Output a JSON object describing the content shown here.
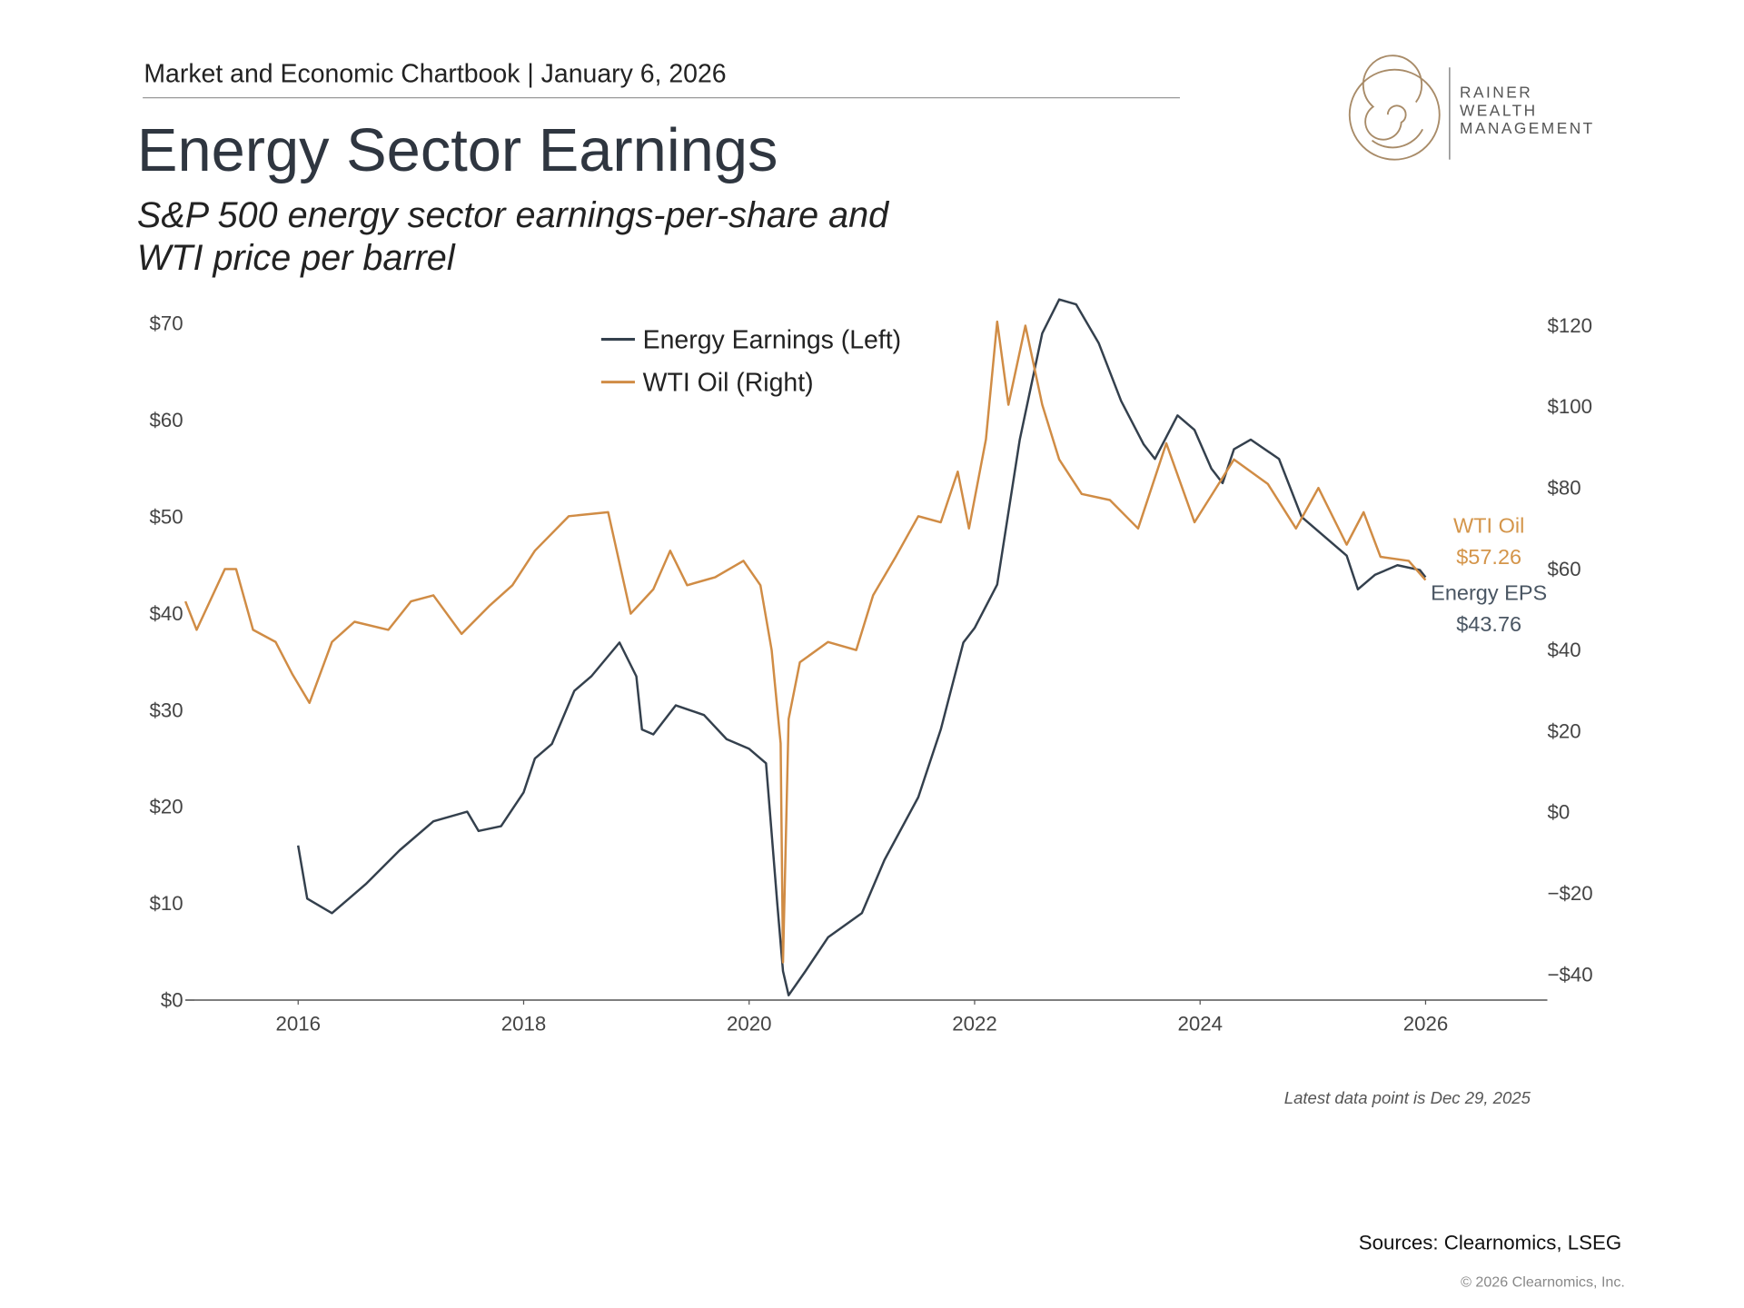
{
  "header": "Market and Economic Chartbook | January 6, 2026",
  "logo": [
    "RAINER",
    "WEALTH",
    "MANAGEMENT"
  ],
  "note": "Latest data point is Dec 29, 2025",
  "sources": "Sources: Clearnomics, LSEG",
  "copyright": "© 2026 Clearnomics, Inc.",
  "chart_data": {
    "type": "line",
    "title": "Energy Sector Earnings",
    "subtitle": [
      "S&P 500 energy sector earnings-per-share and",
      "WTI price per barrel"
    ],
    "xlim": [
      2015,
      2027.08
    ],
    "xticks": [
      2016,
      2018,
      2020,
      2022,
      2024,
      2026
    ],
    "ylim": [
      0,
      70
    ],
    "yticks": [
      {
        "value": 0,
        "label": "$0"
      },
      {
        "value": 10,
        "label": "$10"
      },
      {
        "value": 20,
        "label": "$20"
      },
      {
        "value": 30,
        "label": "$30"
      },
      {
        "value": 40,
        "label": "$40"
      },
      {
        "value": 50,
        "label": "$50"
      },
      {
        "value": 60,
        "label": "$60"
      },
      {
        "value": 70,
        "label": "$70"
      }
    ],
    "y2lim": [
      -46.3,
      120.5
    ],
    "y2ticks": [
      {
        "value": -40,
        "label": "−$40"
      },
      {
        "value": -20,
        "label": "−$20"
      },
      {
        "value": 0,
        "label": "$0"
      },
      {
        "value": 20,
        "label": "$20"
      },
      {
        "value": 40,
        "label": "$40"
      },
      {
        "value": 60,
        "label": "$60"
      },
      {
        "value": 80,
        "label": "$80"
      },
      {
        "value": 100,
        "label": "$100"
      },
      {
        "value": 120,
        "label": "$120"
      }
    ],
    "grid": false,
    "legend": "top",
    "series": [
      {
        "name": "Energy Earnings (Left)",
        "color": "#34404d",
        "axis": "y",
        "x": [
          2016.0,
          2016.08,
          2016.3,
          2016.6,
          2016.9,
          2017.2,
          2017.5,
          2017.6,
          2017.8,
          2018.0,
          2018.1,
          2018.25,
          2018.45,
          2018.6,
          2018.85,
          2019.0,
          2019.05,
          2019.15,
          2019.35,
          2019.6,
          2019.8,
          2020.0,
          2020.15,
          2020.25,
          2020.3,
          2020.35,
          2020.5,
          2020.7,
          2021.0,
          2021.2,
          2021.5,
          2021.7,
          2021.9,
          2022.0,
          2022.2,
          2022.4,
          2022.6,
          2022.75,
          2022.9,
          2023.1,
          2023.3,
          2023.5,
          2023.6,
          2023.8,
          2023.95,
          2024.1,
          2024.2,
          2024.3,
          2024.45,
          2024.7,
          2024.9,
          2025.1,
          2025.3,
          2025.4,
          2025.55,
          2025.75,
          2025.95,
          2026.0
        ],
        "values": [
          16,
          10.5,
          9,
          12,
          15.5,
          18.5,
          19.5,
          17.5,
          18,
          21.5,
          25,
          26.5,
          32,
          33.5,
          37,
          33.5,
          28,
          27.5,
          30.5,
          29.5,
          27,
          26,
          24.5,
          10,
          3,
          0.5,
          3,
          6.5,
          9,
          14.5,
          21,
          28,
          37,
          38.5,
          43,
          58,
          69,
          72.5,
          72,
          68,
          62,
          57.5,
          56,
          60.5,
          59,
          55,
          53.5,
          57,
          58,
          56,
          50,
          48,
          46,
          42.5,
          44,
          45,
          44.5,
          43.76
        ]
      },
      {
        "name": "WTI Oil (Right)",
        "color": "#d08c45",
        "axis": "y2",
        "x": [
          2015.0,
          2015.1,
          2015.35,
          2015.45,
          2015.6,
          2015.8,
          2015.95,
          2016.1,
          2016.3,
          2016.5,
          2016.8,
          2017.0,
          2017.2,
          2017.45,
          2017.7,
          2017.9,
          2018.1,
          2018.4,
          2018.75,
          2018.95,
          2019.15,
          2019.3,
          2019.45,
          2019.7,
          2019.95,
          2020.1,
          2020.2,
          2020.28,
          2020.3,
          2020.35,
          2020.45,
          2020.7,
          2020.95,
          2021.1,
          2021.3,
          2021.5,
          2021.7,
          2021.85,
          2021.95,
          2022.1,
          2022.2,
          2022.3,
          2022.45,
          2022.6,
          2022.75,
          2022.95,
          2023.2,
          2023.45,
          2023.7,
          2023.95,
          2024.2,
          2024.3,
          2024.6,
          2024.85,
          2025.05,
          2025.3,
          2025.45,
          2025.6,
          2025.85,
          2026.0
        ],
        "values": [
          52,
          45,
          60,
          60,
          45,
          42,
          34,
          27,
          42,
          47,
          45,
          52,
          53.5,
          44,
          51,
          56,
          64.5,
          73,
          74,
          49,
          55,
          64.5,
          56,
          58,
          62,
          56,
          40,
          17,
          -37,
          23,
          37,
          42,
          40,
          53.5,
          63,
          73,
          71.5,
          84,
          70,
          92,
          121,
          100.5,
          120,
          100.5,
          87,
          78.5,
          77,
          70,
          91,
          71.5,
          82.5,
          87,
          81,
          70,
          80,
          66,
          74,
          63,
          62,
          57.26
        ]
      }
    ],
    "annotations": [
      "WTI Oil",
      "$57.26",
      "Energy EPS",
      "$43.76"
    ]
  }
}
